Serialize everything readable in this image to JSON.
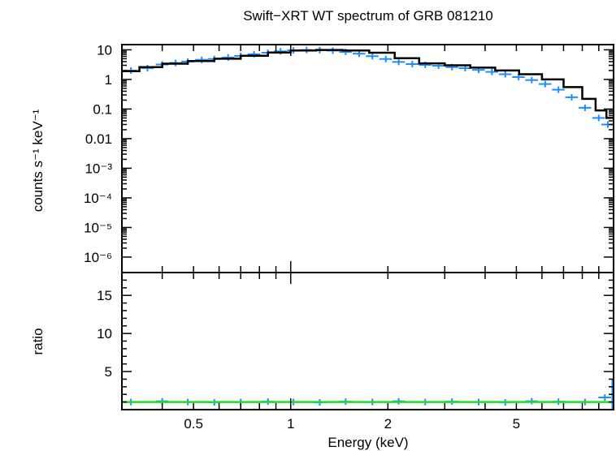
{
  "chart_data": [
    {
      "type": "scatter",
      "panel": "spectrum",
      "title": "Swift−XRT WT spectrum of GRB 081210",
      "ylabel": "counts s⁻¹ keV⁻¹",
      "x_scale": "log",
      "y_scale": "log",
      "xlim": [
        0.3,
        10
      ],
      "ylim": [
        3e-07,
        15
      ],
      "y_tick_labels": [
        "10",
        "1",
        "0.1",
        "0.01",
        "10⁻³",
        "10⁻⁴",
        "10⁻⁵",
        "10⁻⁶"
      ],
      "grid": false,
      "series": [
        {
          "color": "#1e8cff",
          "x": [
            0.32,
            0.36,
            0.4,
            0.44,
            0.48,
            0.53,
            0.58,
            0.64,
            0.7,
            0.77,
            0.85,
            0.93,
            1.02,
            1.12,
            1.23,
            1.35,
            1.48,
            1.63,
            1.79,
            1.97,
            2.16,
            2.38,
            2.61,
            2.87,
            3.16,
            3.47,
            3.82,
            4.2,
            4.62,
            5.08,
            5.58,
            6.14,
            6.75,
            7.42,
            8.16,
            9.0,
            9.6
          ],
          "y": [
            2.0,
            2.4,
            3.2,
            3.6,
            4.0,
            4.6,
            4.9,
            5.5,
            6.2,
            7.1,
            8.0,
            8.9,
            9.6,
            9.9,
            9.8,
            9.4,
            8.5,
            7.4,
            6.1,
            4.9,
            3.9,
            3.3,
            3.1,
            2.9,
            2.6,
            2.4,
            2.1,
            1.8,
            1.5,
            1.2,
            0.95,
            0.7,
            0.45,
            0.25,
            0.11,
            0.05,
            0.03
          ]
        },
        {
          "color": "#000000",
          "style": "step",
          "x": [
            0.3,
            0.34,
            0.4,
            0.48,
            0.58,
            0.7,
            0.85,
            1.0,
            1.2,
            1.45,
            1.75,
            2.1,
            2.5,
            3.0,
            3.6,
            4.3,
            5.1,
            6.0,
            7.0,
            8.0,
            8.8,
            9.5,
            10.0
          ],
          "y": [
            1.9,
            2.6,
            3.4,
            4.2,
            5.0,
            6.3,
            8.1,
            9.5,
            9.9,
            9.5,
            8.0,
            5.2,
            3.5,
            3.0,
            2.5,
            2.0,
            1.5,
            1.0,
            0.55,
            0.22,
            0.09,
            0.05,
            0.03
          ]
        }
      ]
    },
    {
      "type": "scatter",
      "panel": "ratio",
      "xlabel": "Energy (keV)",
      "ylabel": "ratio",
      "x_scale": "log",
      "xlim": [
        0.3,
        10
      ],
      "ylim": [
        0,
        18
      ],
      "x_tick_labels": [
        "0.5",
        "1",
        "2",
        "5"
      ],
      "y_tick_labels": [
        "15",
        "10",
        "5"
      ],
      "grid": false,
      "series": [
        {
          "color": "#1e8cff",
          "x": [
            0.32,
            0.4,
            0.48,
            0.58,
            0.7,
            0.85,
            1.02,
            1.23,
            1.48,
            1.79,
            2.16,
            2.61,
            3.16,
            3.82,
            4.62,
            5.58,
            6.75,
            8.16,
            9.4
          ],
          "y": [
            1.0,
            1.1,
            1.0,
            0.95,
            1.0,
            1.05,
            1.0,
            0.95,
            1.05,
            1.0,
            1.1,
            1.0,
            1.05,
            1.0,
            0.95,
            1.1,
            1.05,
            1.0,
            1.6
          ]
        },
        {
          "color": "#22dd22",
          "style": "line",
          "x": [
            0.3,
            10
          ],
          "y": [
            1.0,
            1.0
          ]
        }
      ]
    }
  ]
}
